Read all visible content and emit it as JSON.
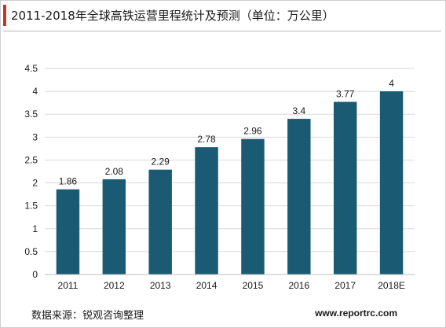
{
  "header": {
    "title": "2011-2018年全球高铁运营里程统计及预测（单位：万公里）"
  },
  "footer": {
    "source": "数据来源：锐观咨询整理",
    "website": "www.reportrc.com"
  },
  "colors": {
    "bar": "#1a5b73",
    "accent": "#c0392b",
    "grid": "#d9d9d9"
  },
  "chart_data": {
    "type": "bar",
    "title": "2011-2018年全球高铁运营里程统计及预测（单位：万公里）",
    "categories": [
      "2011",
      "2012",
      "2013",
      "2014",
      "2015",
      "2016",
      "2017",
      "2018E"
    ],
    "values": [
      1.86,
      2.08,
      2.29,
      2.78,
      2.96,
      3.4,
      3.77,
      4
    ],
    "value_labels": [
      "1.86",
      "2.08",
      "2.29",
      "2.78",
      "2.96",
      "3.4",
      "3.77",
      "4"
    ],
    "y_ticks": [
      "0",
      "0.5",
      "1",
      "1.5",
      "2",
      "2.5",
      "3",
      "3.5",
      "4",
      "4.5"
    ],
    "ylim": [
      0,
      4.5
    ],
    "grid": true,
    "legend": "none"
  }
}
